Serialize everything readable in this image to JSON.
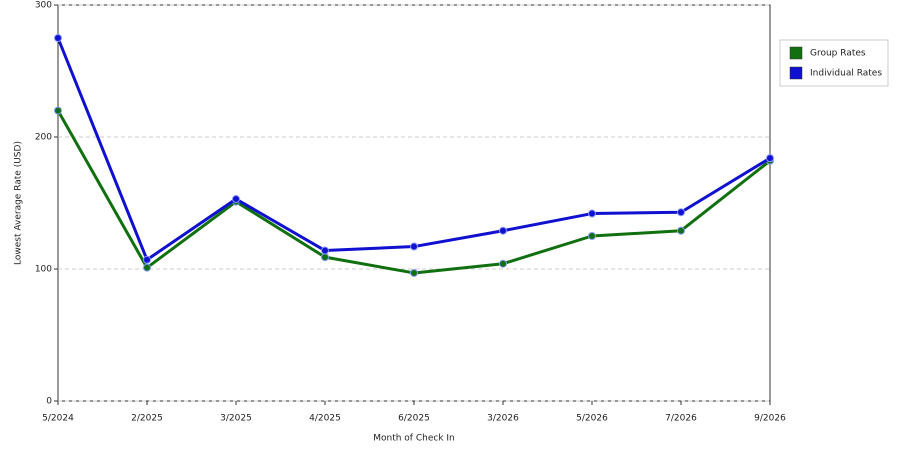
{
  "chart_data": {
    "type": "line",
    "x_label": "Month of Check In",
    "y_label": "Lowest Average Rate (USD)",
    "categories": [
      "5/2024",
      "2/2025",
      "3/2025",
      "4/2025",
      "6/2025",
      "3/2026",
      "5/2026",
      "7/2026",
      "9/2026"
    ],
    "series": [
      {
        "name": "Group Rates",
        "color": "#107010",
        "values": [
          220,
          101,
          151,
          109,
          97,
          104,
          125,
          129,
          182
        ]
      },
      {
        "name": "Individual Rates",
        "color": "#1010d0",
        "values": [
          275,
          107,
          153,
          114,
          117,
          129,
          142,
          143,
          184
        ]
      }
    ],
    "ylim": [
      0,
      300
    ],
    "yticks": [
      0,
      100,
      200,
      300
    ],
    "grid": true,
    "legend": "right"
  }
}
